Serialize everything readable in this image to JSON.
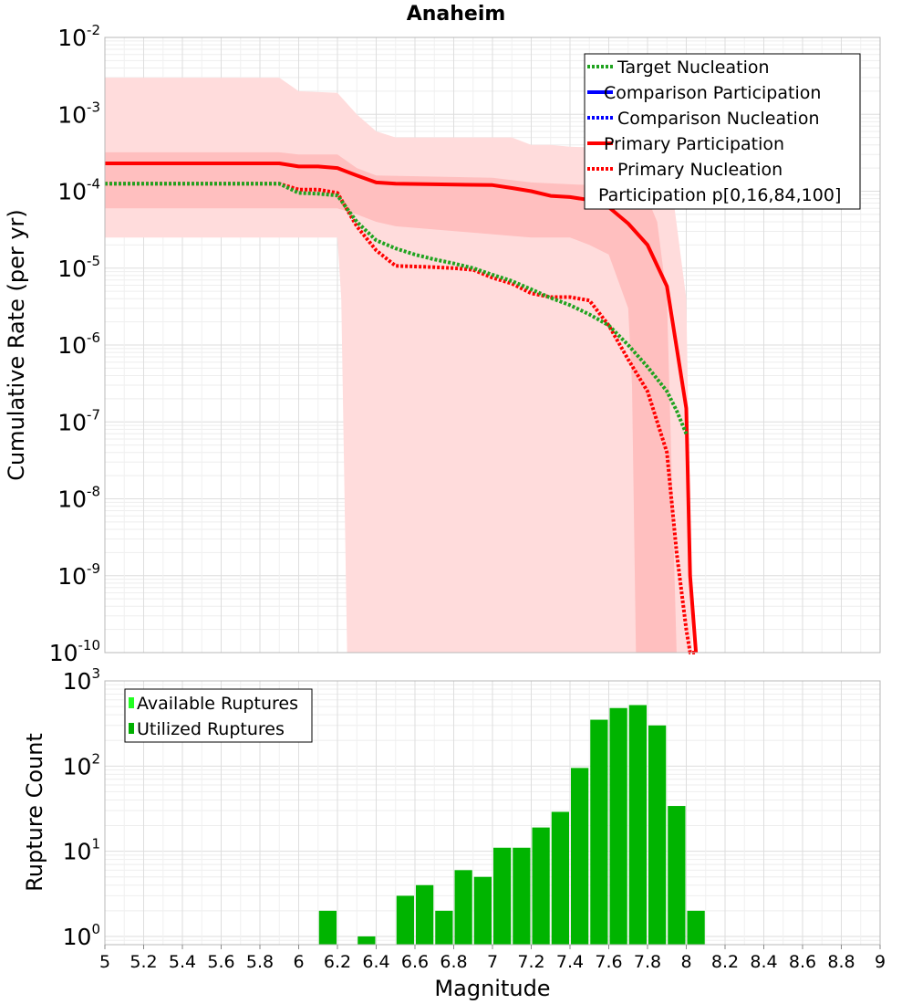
{
  "title": "Anaheim",
  "chart_data": [
    {
      "type": "line",
      "title": "Anaheim",
      "xlabel": "Magnitude",
      "ylabel": "Cumulative Rate (per yr)",
      "yscale": "log",
      "xlim": [
        5,
        9
      ],
      "ylim": [
        1e-10,
        0.01
      ],
      "y_tick_exponents": [
        -2,
        -3,
        -4,
        -5,
        -6,
        -7,
        -8,
        -9,
        -10
      ],
      "grid": true,
      "legend_position": "top-right",
      "legend": [
        {
          "label": "Target Nucleation",
          "color": "#1fa31f",
          "style": "dotted"
        },
        {
          "label": "Comparison Participation",
          "color": "#0000ff",
          "style": "solid"
        },
        {
          "label": "Comparison Nucleation",
          "color": "#0000ff",
          "style": "dotted"
        },
        {
          "label": "Primary Participation",
          "color": "#ff0000",
          "style": "solid"
        },
        {
          "label": "Primary Nucleation",
          "color": "#ff0000",
          "style": "dotted"
        },
        {
          "label": "Participation p[0,16,84,100]",
          "color": "",
          "style": "none"
        }
      ],
      "bands": [
        {
          "name": "p0-p100",
          "color": "#ffdcdc",
          "upper": [
            [
              5,
              0.003
            ],
            [
              5.9,
              0.003
            ],
            [
              6.0,
              0.002
            ],
            [
              6.2,
              0.0019
            ],
            [
              6.3,
              0.001
            ],
            [
              6.4,
              0.0006
            ],
            [
              6.5,
              0.0005
            ],
            [
              7.1,
              0.0005
            ],
            [
              7.2,
              0.0004
            ],
            [
              7.3,
              0.0004
            ],
            [
              7.4,
              0.00038
            ],
            [
              7.8,
              0.00035
            ],
            [
              7.9,
              0.00035
            ],
            [
              8.0,
              4e-06
            ],
            [
              8.03,
              1e-10
            ]
          ],
          "lower": [
            [
              5,
              2.5e-05
            ],
            [
              6.2,
              2.5e-05
            ],
            [
              6.22,
              4e-06
            ],
            [
              6.25,
              1e-10
            ],
            [
              8.03,
              1e-10
            ]
          ]
        },
        {
          "name": "p16-p84",
          "color": "#ffbfbf",
          "upper": [
            [
              5,
              0.00032
            ],
            [
              5.9,
              0.00032
            ],
            [
              6.0,
              0.0003
            ],
            [
              6.2,
              0.0003
            ],
            [
              6.3,
              0.0002
            ],
            [
              6.4,
              0.00016
            ],
            [
              7.0,
              0.00015
            ],
            [
              7.2,
              0.00013
            ],
            [
              7.5,
              0.00012
            ],
            [
              7.6,
              0.00012
            ],
            [
              7.7,
              0.0001
            ],
            [
              7.8,
              8e-05
            ],
            [
              7.85,
              4e-05
            ],
            [
              7.9,
              4e-06
            ],
            [
              7.95,
              1e-10
            ]
          ],
          "lower": [
            [
              5,
              6e-05
            ],
            [
              6.2,
              6e-05
            ],
            [
              6.3,
              5e-05
            ],
            [
              6.4,
              4e-05
            ],
            [
              6.5,
              3.5e-05
            ],
            [
              7.2,
              2.5e-05
            ],
            [
              7.4,
              2.5e-05
            ],
            [
              7.5,
              2e-05
            ],
            [
              7.6,
              1.5e-05
            ],
            [
              7.7,
              3e-06
            ],
            [
              7.72,
              3e-07
            ],
            [
              7.74,
              1e-10
            ],
            [
              7.95,
              1e-10
            ]
          ]
        }
      ],
      "series": [
        {
          "name": "Primary Participation",
          "color": "#ff0000",
          "style": "solid",
          "x": [
            5.0,
            5.9,
            6.0,
            6.1,
            6.2,
            6.3,
            6.4,
            6.5,
            7.0,
            7.1,
            7.2,
            7.3,
            7.4,
            7.5,
            7.6,
            7.7,
            7.8,
            7.9,
            8.0,
            8.02,
            8.05
          ],
          "y": [
            0.00023,
            0.00023,
            0.00021,
            0.00021,
            0.0002,
            0.00016,
            0.00013,
            0.000125,
            0.00012,
            0.00011,
            0.0001,
            8.7e-05,
            8.4e-05,
            7.7e-05,
            6.2e-05,
            3.8e-05,
            2e-05,
            5.8e-06,
            1.5e-07,
            1e-09,
            1e-10
          ]
        },
        {
          "name": "Primary Nucleation",
          "color": "#ff0000",
          "style": "dotted",
          "x": [
            5.0,
            5.9,
            6.0,
            6.1,
            6.2,
            6.3,
            6.4,
            6.5,
            6.6,
            6.7,
            6.8,
            6.9,
            7.0,
            7.1,
            7.2,
            7.3,
            7.4,
            7.5,
            7.6,
            7.7,
            7.8,
            7.9,
            7.95,
            8.0,
            8.02,
            8.05
          ],
          "y": [
            0.000125,
            0.000125,
            0.000105,
            0.000105,
            9.5e-05,
            3.5e-05,
            1.7e-05,
            1.07e-05,
            1.05e-05,
            1.03e-05,
            1e-05,
            9.5e-06,
            7.5e-06,
            6.3e-06,
            4.7e-06,
            4.2e-06,
            4.2e-06,
            3.8e-06,
            1.8e-06,
            6.5e-07,
            2.5e-07,
            4e-08,
            2e-09,
            2e-10,
            1e-10,
            1e-10
          ]
        },
        {
          "name": "Target Nucleation",
          "color": "#1fa31f",
          "style": "dotted",
          "x": [
            5.0,
            5.9,
            6.0,
            6.1,
            6.2,
            6.3,
            6.4,
            6.5,
            6.6,
            6.7,
            6.8,
            6.9,
            7.0,
            7.1,
            7.2,
            7.3,
            7.4,
            7.5,
            7.6,
            7.7,
            7.8,
            7.9,
            7.95,
            8.0
          ],
          "y": [
            0.000125,
            0.000125,
            9.5e-05,
            9.3e-05,
            8.8e-05,
            4e-05,
            2.3e-05,
            1.8e-05,
            1.5e-05,
            1.3e-05,
            1.15e-05,
            1e-05,
            8.2e-06,
            6.8e-06,
            5.3e-06,
            4.1e-06,
            3.3e-06,
            2.5e-06,
            1.8e-06,
            1e-06,
            5.2e-07,
            2.5e-07,
            1.4e-07,
            7e-08
          ]
        }
      ]
    },
    {
      "type": "bar",
      "xlabel": "Magnitude",
      "ylabel": "Rupture Count",
      "yscale": "log",
      "xlim": [
        5,
        9
      ],
      "ylim": [
        0.8,
        1000
      ],
      "y_tick_exponents": [
        3,
        2,
        1,
        0
      ],
      "x_ticks": [
        "5",
        "5.2",
        "5.4",
        "5.6",
        "5.8",
        "6",
        "6.2",
        "6.4",
        "6.6",
        "6.8",
        "7",
        "7.2",
        "7.4",
        "7.6",
        "7.8",
        "8",
        "8.2",
        "8.4",
        "8.6",
        "8.8",
        "9"
      ],
      "grid": true,
      "legend_position": "top-left",
      "legend": [
        {
          "label": "Available Ruptures",
          "color": "#22ff22"
        },
        {
          "label": "Utilized Ruptures",
          "color": "#00b000"
        }
      ],
      "bin_width": 0.1,
      "series": [
        {
          "name": "Utilized Ruptures",
          "color": "#00b400",
          "x": [
            6.15,
            6.35,
            6.55,
            6.65,
            6.75,
            6.85,
            6.95,
            7.05,
            7.15,
            7.25,
            7.35,
            7.45,
            7.55,
            7.65,
            7.75,
            7.85,
            7.95,
            8.05
          ],
          "values": [
            2,
            1,
            3,
            4,
            2,
            6,
            5,
            11,
            11,
            19,
            29,
            95,
            350,
            480,
            520,
            300,
            34,
            2
          ]
        }
      ]
    }
  ]
}
